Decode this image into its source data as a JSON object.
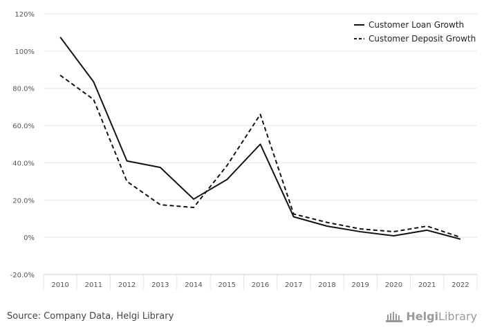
{
  "chart_data": {
    "type": "line",
    "categories": [
      "2010",
      "2011",
      "2012",
      "2013",
      "2014",
      "2015",
      "2016",
      "2017",
      "2018",
      "2019",
      "2020",
      "2021",
      "2022"
    ],
    "series": [
      {
        "name": "Customer Loan Growth",
        "values": [
          107.5,
          83.5,
          41.0,
          37.5,
          20.5,
          31.0,
          50.0,
          11.0,
          6.0,
          3.0,
          0.8,
          3.8,
          -1.0
        ],
        "dash": "solid"
      },
      {
        "name": "Customer Deposit Growth",
        "values": [
          87.0,
          74.0,
          30.0,
          17.5,
          16.0,
          38.5,
          66.0,
          12.5,
          8.0,
          4.5,
          3.0,
          6.0,
          0.0
        ],
        "dash": "dashed"
      }
    ],
    "ylim": [
      -20,
      120
    ],
    "yticks": [
      -20,
      0,
      20,
      40,
      60,
      80,
      100,
      120
    ],
    "ytick_labels": [
      "-20.0%",
      "0%",
      "20.0%",
      "40.0%",
      "60.0%",
      "80.0%",
      "100%",
      "120%"
    ],
    "grid": true,
    "legend_position": "top-right",
    "colors": {
      "line": "#111111",
      "grid": "#e6e6e6",
      "axis": "#cccccc"
    }
  },
  "footer": {
    "source": "Source: Company Data, Helgi Library",
    "brand_bold": "Helgi",
    "brand_rest": "Library"
  }
}
